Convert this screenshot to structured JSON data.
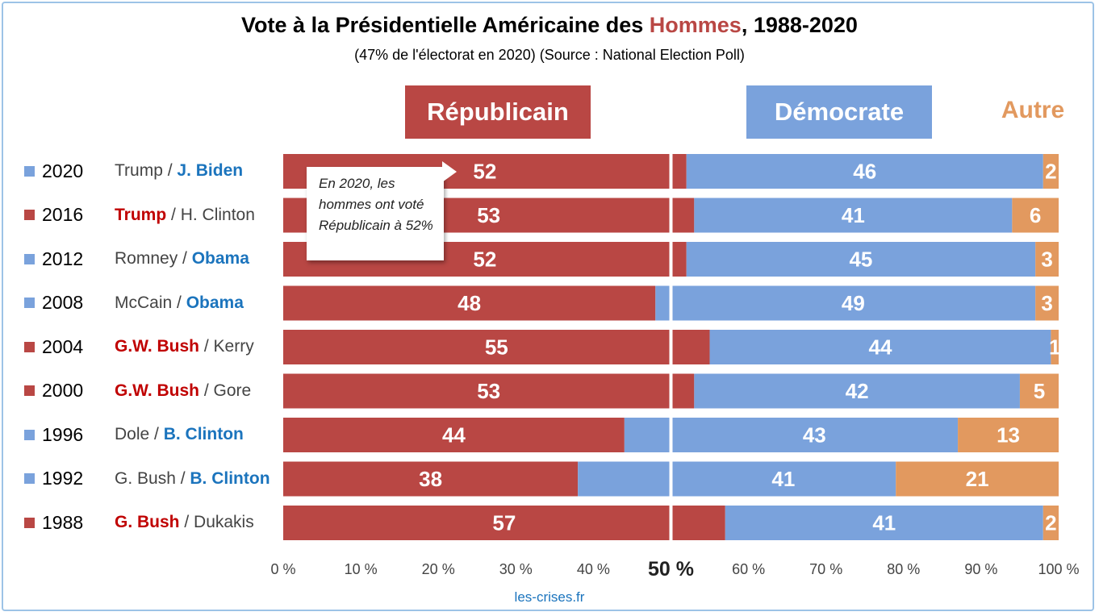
{
  "title_pre": "Vote à la Présidentielle Américaine des ",
  "title_hl": "Hommes",
  "title_post": ", 1988-2020",
  "subtitle": "(47% de l'électorat en 2020) (Source : National Election Poll)",
  "headers": {
    "republican": "Républicain",
    "democrat": "Démocrate",
    "other": "Autre"
  },
  "callout": "En 2020, les hommes ont voté Républicain à 52%",
  "source": "les-crises.fr",
  "colors": {
    "republican": "#b94744",
    "democrat": "#7aa2dc",
    "other": "#e2995f"
  },
  "rows": [
    {
      "year": "2020",
      "winner": "dem",
      "rep_cand": "Trump",
      "dem_cand": "J. Biden"
    },
    {
      "year": "2016",
      "winner": "rep",
      "rep_cand": "Trump",
      "dem_cand": "H. Clinton"
    },
    {
      "year": "2012",
      "winner": "dem",
      "rep_cand": "Romney",
      "dem_cand": "Obama"
    },
    {
      "year": "2008",
      "winner": "dem",
      "rep_cand": "McCain",
      "dem_cand": "Obama"
    },
    {
      "year": "2004",
      "winner": "rep",
      "rep_cand": "G.W. Bush",
      "dem_cand": "Kerry"
    },
    {
      "year": "2000",
      "winner": "rep",
      "rep_cand": "G.W. Bush",
      "dem_cand": "Gore"
    },
    {
      "year": "1996",
      "winner": "dem",
      "rep_cand": "Dole",
      "dem_cand": "B. Clinton"
    },
    {
      "year": "1992",
      "winner": "dem",
      "rep_cand": "G. Bush",
      "dem_cand": "B. Clinton"
    },
    {
      "year": "1988",
      "winner": "rep",
      "rep_cand": "G. Bush",
      "dem_cand": "Dukakis"
    }
  ],
  "chart_data": {
    "type": "bar",
    "orientation": "horizontal",
    "stacked": true,
    "categories": [
      "2020",
      "2016",
      "2012",
      "2008",
      "2004",
      "2000",
      "1996",
      "1992",
      "1988"
    ],
    "series": [
      {
        "name": "Républicain",
        "values": [
          52,
          53,
          52,
          48,
          55,
          53,
          44,
          38,
          57
        ]
      },
      {
        "name": "Démocrate",
        "values": [
          46,
          41,
          45,
          49,
          44,
          42,
          43,
          41,
          41
        ]
      },
      {
        "name": "Autre",
        "values": [
          2,
          6,
          3,
          3,
          1,
          5,
          13,
          21,
          2
        ]
      }
    ],
    "xlim": [
      0,
      100
    ],
    "x_ticks": [
      "0 %",
      "10 %",
      "20 %",
      "30 %",
      "40 %",
      "50 %",
      "60 %",
      "70 %",
      "80 %",
      "90 %",
      "100 %"
    ],
    "midline": 50,
    "legend": "top"
  }
}
